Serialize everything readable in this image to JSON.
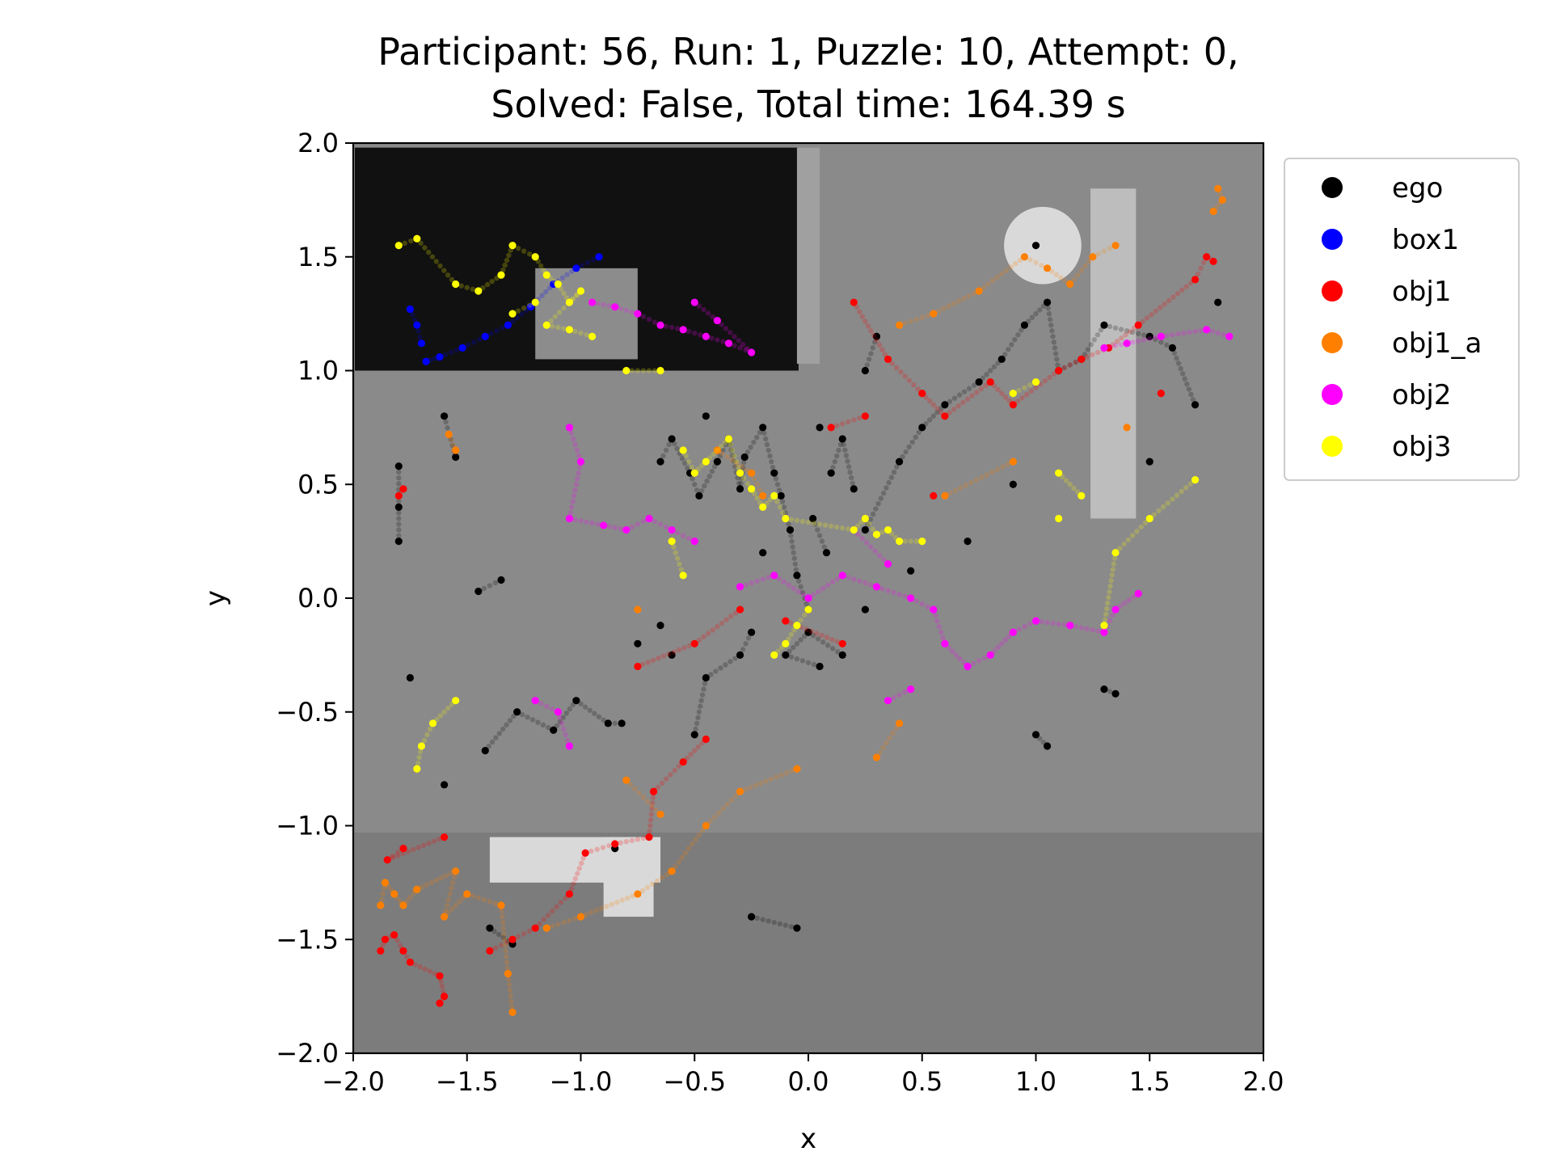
{
  "chart_data": {
    "type": "scatter",
    "title_line1": "Participant: 56, Run: 1, Puzzle: 10, Attempt: 0,",
    "title_line2": "Solved: False, Total time: 164.39 s",
    "xlabel": "x",
    "ylabel": "y",
    "xlim": [
      -2.0,
      2.0
    ],
    "ylim": [
      -2.0,
      2.0
    ],
    "xticks": [
      -2.0,
      -1.5,
      -1.0,
      -0.5,
      0.0,
      0.5,
      1.0,
      1.5,
      2.0
    ],
    "yticks": [
      -2.0,
      -1.5,
      -1.0,
      -0.5,
      0.0,
      0.5,
      1.0,
      1.5,
      2.0
    ],
    "xtick_labels": [
      "−2.0",
      "−1.5",
      "−1.0",
      "−0.5",
      "0.0",
      "0.5",
      "1.0",
      "1.5",
      "2.0"
    ],
    "ytick_labels": [
      "−2.0",
      "−1.5",
      "−1.0",
      "−0.5",
      "0.0",
      "0.5",
      "1.0",
      "1.5",
      "2.0"
    ],
    "legend_position": "outside-right-top",
    "background": {
      "floor_color": "#8a8a8a",
      "dark_region_color": "#111111",
      "lower_band_color": "#7c7c7c",
      "fixtures_color": "#d9d9d9"
    },
    "series": [
      {
        "name": "ego",
        "color": "#000000",
        "points": [
          [
            -1.8,
            0.58
          ],
          [
            -1.8,
            0.4
          ],
          [
            -1.8,
            0.25
          ],
          [
            -1.75,
            -0.35
          ],
          [
            -1.6,
            0.8
          ],
          [
            -1.55,
            0.62
          ],
          [
            -1.45,
            0.03
          ],
          [
            -1.35,
            0.08
          ],
          [
            -1.42,
            -0.67
          ],
          [
            -1.28,
            -0.5
          ],
          [
            -1.12,
            -0.58
          ],
          [
            -1.02,
            -0.45
          ],
          [
            -0.88,
            -0.55
          ],
          [
            -0.82,
            -0.55
          ],
          [
            -0.75,
            -0.2
          ],
          [
            -0.65,
            0.6
          ],
          [
            -0.6,
            0.7
          ],
          [
            -0.52,
            0.55
          ],
          [
            -0.48,
            0.45
          ],
          [
            -0.4,
            0.6
          ],
          [
            -0.35,
            0.7
          ],
          [
            -0.3,
            0.48
          ],
          [
            -0.28,
            0.62
          ],
          [
            -0.2,
            0.75
          ],
          [
            -0.15,
            0.55
          ],
          [
            -0.12,
            0.45
          ],
          [
            -0.08,
            0.3
          ],
          [
            -0.05,
            0.1
          ],
          [
            0.0,
            -0.05
          ],
          [
            0.02,
            0.35
          ],
          [
            0.08,
            0.2
          ],
          [
            0.1,
            0.55
          ],
          [
            0.15,
            0.7
          ],
          [
            0.2,
            0.48
          ],
          [
            -0.25,
            -0.15
          ],
          [
            -0.3,
            -0.25
          ],
          [
            -0.45,
            -0.35
          ],
          [
            -0.5,
            -0.6
          ],
          [
            -0.6,
            -0.25
          ],
          [
            -0.2,
            0.2
          ],
          [
            0.25,
            0.3
          ],
          [
            0.4,
            0.6
          ],
          [
            0.5,
            0.75
          ],
          [
            0.6,
            0.85
          ],
          [
            0.75,
            0.95
          ],
          [
            0.85,
            1.05
          ],
          [
            0.95,
            1.2
          ],
          [
            1.05,
            1.3
          ],
          [
            1.1,
            1.0
          ],
          [
            1.2,
            1.05
          ],
          [
            1.3,
            1.2
          ],
          [
            1.5,
            1.15
          ],
          [
            1.6,
            1.1
          ],
          [
            1.7,
            0.85
          ],
          [
            1.8,
            1.3
          ],
          [
            1.05,
            -0.65
          ],
          [
            1.0,
            -0.6
          ],
          [
            1.3,
            -0.4
          ],
          [
            1.35,
            -0.42
          ],
          [
            1.5,
            0.6
          ],
          [
            -0.05,
            -1.45
          ],
          [
            -0.25,
            -1.4
          ],
          [
            -0.85,
            -1.1
          ],
          [
            -1.4,
            -1.45
          ],
          [
            -1.3,
            -1.52
          ],
          [
            -1.6,
            -0.82
          ],
          [
            0.05,
            0.75
          ],
          [
            0.25,
            -0.05
          ],
          [
            -0.45,
            0.8
          ],
          [
            0.45,
            0.12
          ],
          [
            0.05,
            -0.3
          ],
          [
            -0.1,
            -0.25
          ],
          [
            0.0,
            -0.15
          ],
          [
            0.15,
            -0.25
          ],
          [
            -0.65,
            -0.12
          ],
          [
            0.7,
            0.25
          ],
          [
            0.3,
            1.15
          ],
          [
            0.25,
            1.0
          ],
          [
            1.0,
            1.55
          ],
          [
            0.9,
            0.5
          ]
        ]
      },
      {
        "name": "box1",
        "color": "#0000ff",
        "points": [
          [
            -1.68,
            1.04
          ],
          [
            -1.62,
            1.06
          ],
          [
            -1.52,
            1.1
          ],
          [
            -1.42,
            1.15
          ],
          [
            -1.32,
            1.2
          ],
          [
            -1.22,
            1.28
          ],
          [
            -1.12,
            1.38
          ],
          [
            -1.02,
            1.45
          ],
          [
            -0.92,
            1.5
          ],
          [
            -1.7,
            1.12
          ],
          [
            -1.72,
            1.2
          ],
          [
            -1.75,
            1.27
          ]
        ]
      },
      {
        "name": "obj1",
        "color": "#ff0000",
        "points": [
          [
            -1.88,
            -1.55
          ],
          [
            -1.86,
            -1.5
          ],
          [
            -1.82,
            -1.48
          ],
          [
            -1.78,
            -1.55
          ],
          [
            -1.75,
            -1.6
          ],
          [
            -1.62,
            -1.66
          ],
          [
            -1.6,
            -1.75
          ],
          [
            -1.62,
            -1.78
          ],
          [
            -1.6,
            -1.05
          ],
          [
            -1.85,
            -1.15
          ],
          [
            -1.78,
            -1.1
          ],
          [
            -1.4,
            -1.55
          ],
          [
            -1.3,
            -1.5
          ],
          [
            -1.2,
            -1.45
          ],
          [
            -1.05,
            -1.3
          ],
          [
            -0.98,
            -1.12
          ],
          [
            -0.85,
            -1.08
          ],
          [
            -0.7,
            -1.05
          ],
          [
            -0.68,
            -0.85
          ],
          [
            -0.55,
            -0.72
          ],
          [
            -0.45,
            -0.62
          ],
          [
            -0.75,
            -0.3
          ],
          [
            -0.5,
            -0.2
          ],
          [
            -0.3,
            -0.05
          ],
          [
            -1.78,
            0.48
          ],
          [
            -1.8,
            0.45
          ],
          [
            0.2,
            1.3
          ],
          [
            0.35,
            1.05
          ],
          [
            0.5,
            0.9
          ],
          [
            0.6,
            0.8
          ],
          [
            0.8,
            0.95
          ],
          [
            0.9,
            0.85
          ],
          [
            1.1,
            1.0
          ],
          [
            1.2,
            1.05
          ],
          [
            1.32,
            1.1
          ],
          [
            1.45,
            1.2
          ],
          [
            1.7,
            1.4
          ],
          [
            1.75,
            1.5
          ],
          [
            1.78,
            1.48
          ],
          [
            0.1,
            0.75
          ],
          [
            0.25,
            0.8
          ],
          [
            0.55,
            0.45
          ],
          [
            0.15,
            -0.2
          ],
          [
            -0.1,
            -0.1
          ],
          [
            1.55,
            0.9
          ]
        ]
      },
      {
        "name": "obj1_a",
        "color": "#ff8000",
        "points": [
          [
            -1.88,
            -1.35
          ],
          [
            -1.86,
            -1.25
          ],
          [
            -1.82,
            -1.3
          ],
          [
            -1.78,
            -1.35
          ],
          [
            -1.72,
            -1.28
          ],
          [
            -1.55,
            -1.2
          ],
          [
            -1.6,
            -1.4
          ],
          [
            -1.5,
            -1.3
          ],
          [
            -1.35,
            -1.35
          ],
          [
            -1.32,
            -1.65
          ],
          [
            -1.3,
            -1.82
          ],
          [
            -1.15,
            -1.45
          ],
          [
            -1.0,
            -1.4
          ],
          [
            -0.75,
            -1.3
          ],
          [
            -0.6,
            -1.2
          ],
          [
            -0.45,
            -1.0
          ],
          [
            -0.3,
            -0.85
          ],
          [
            -0.05,
            -0.75
          ],
          [
            0.3,
            -0.7
          ],
          [
            0.4,
            -0.55
          ],
          [
            -1.58,
            0.72
          ],
          [
            -1.55,
            0.65
          ],
          [
            -0.4,
            0.65
          ],
          [
            -0.25,
            0.55
          ],
          [
            -0.2,
            0.45
          ],
          [
            0.4,
            1.2
          ],
          [
            0.55,
            1.25
          ],
          [
            0.75,
            1.35
          ],
          [
            0.95,
            1.5
          ],
          [
            1.05,
            1.45
          ],
          [
            1.15,
            1.38
          ],
          [
            1.25,
            1.5
          ],
          [
            1.35,
            1.55
          ],
          [
            1.8,
            1.8
          ],
          [
            1.82,
            1.75
          ],
          [
            1.78,
            1.7
          ],
          [
            1.4,
            0.75
          ],
          [
            0.6,
            0.45
          ],
          [
            0.9,
            0.6
          ],
          [
            -0.75,
            -0.05
          ],
          [
            -0.8,
            -0.8
          ],
          [
            -0.65,
            -0.95
          ]
        ]
      },
      {
        "name": "obj2",
        "color": "#ff00ff",
        "points": [
          [
            -0.95,
            1.3
          ],
          [
            -0.85,
            1.28
          ],
          [
            -0.75,
            1.25
          ],
          [
            -0.65,
            1.2
          ],
          [
            -0.55,
            1.18
          ],
          [
            -0.45,
            1.15
          ],
          [
            -0.35,
            1.12
          ],
          [
            -0.25,
            1.08
          ],
          [
            -0.4,
            1.22
          ],
          [
            -0.5,
            1.3
          ],
          [
            -1.05,
            0.75
          ],
          [
            -1.0,
            0.6
          ],
          [
            -1.05,
            0.35
          ],
          [
            -0.9,
            0.32
          ],
          [
            -0.8,
            0.3
          ],
          [
            -0.7,
            0.35
          ],
          [
            -0.6,
            0.3
          ],
          [
            -0.5,
            0.25
          ],
          [
            -1.2,
            -0.45
          ],
          [
            -1.1,
            -0.5
          ],
          [
            -1.05,
            -0.65
          ],
          [
            -0.3,
            0.05
          ],
          [
            -0.15,
            0.1
          ],
          [
            0.0,
            0.0
          ],
          [
            0.15,
            0.1
          ],
          [
            0.3,
            0.05
          ],
          [
            0.45,
            0.0
          ],
          [
            0.55,
            -0.05
          ],
          [
            0.6,
            -0.2
          ],
          [
            0.7,
            -0.3
          ],
          [
            0.8,
            -0.25
          ],
          [
            0.9,
            -0.15
          ],
          [
            1.0,
            -0.1
          ],
          [
            1.15,
            -0.12
          ],
          [
            1.3,
            -0.15
          ],
          [
            1.35,
            -0.05
          ],
          [
            1.45,
            0.02
          ],
          [
            0.45,
            -0.4
          ],
          [
            0.35,
            -0.45
          ],
          [
            1.3,
            1.1
          ],
          [
            1.4,
            1.12
          ],
          [
            1.55,
            1.15
          ],
          [
            1.75,
            1.18
          ],
          [
            1.85,
            1.15
          ],
          [
            0.2,
            0.3
          ],
          [
            0.35,
            0.15
          ]
        ]
      },
      {
        "name": "obj3",
        "color": "#ffff00",
        "points": [
          [
            -1.8,
            1.55
          ],
          [
            -1.72,
            1.58
          ],
          [
            -1.55,
            1.38
          ],
          [
            -1.45,
            1.35
          ],
          [
            -1.35,
            1.42
          ],
          [
            -1.3,
            1.55
          ],
          [
            -1.2,
            1.5
          ],
          [
            -1.15,
            1.42
          ],
          [
            -1.1,
            1.38
          ],
          [
            -1.05,
            1.3
          ],
          [
            -1.0,
            1.35
          ],
          [
            -1.15,
            1.2
          ],
          [
            -1.05,
            1.18
          ],
          [
            -0.95,
            1.15
          ],
          [
            -1.3,
            1.25
          ],
          [
            -1.2,
            1.3
          ],
          [
            -0.8,
            1.0
          ],
          [
            -0.65,
            1.0
          ],
          [
            -0.55,
            0.65
          ],
          [
            -0.5,
            0.55
          ],
          [
            -0.45,
            0.6
          ],
          [
            -0.35,
            0.7
          ],
          [
            -0.3,
            0.55
          ],
          [
            -0.25,
            0.48
          ],
          [
            -0.2,
            0.4
          ],
          [
            -0.15,
            0.45
          ],
          [
            -0.1,
            0.35
          ],
          [
            0.2,
            0.3
          ],
          [
            0.25,
            0.35
          ],
          [
            0.3,
            0.28
          ],
          [
            0.35,
            0.3
          ],
          [
            0.4,
            0.25
          ],
          [
            0.5,
            0.25
          ],
          [
            0.9,
            0.9
          ],
          [
            1.0,
            0.95
          ],
          [
            1.1,
            0.55
          ],
          [
            1.2,
            0.45
          ],
          [
            1.3,
            -0.12
          ],
          [
            1.35,
            0.2
          ],
          [
            1.5,
            0.35
          ],
          [
            1.7,
            0.52
          ],
          [
            1.1,
            0.35
          ],
          [
            -1.55,
            -0.45
          ],
          [
            -1.65,
            -0.55
          ],
          [
            -1.7,
            -0.65
          ],
          [
            -1.72,
            -0.75
          ],
          [
            0.0,
            -0.05
          ],
          [
            -0.05,
            -0.12
          ],
          [
            -0.1,
            -0.2
          ],
          [
            -0.15,
            -0.25
          ],
          [
            -0.55,
            0.1
          ],
          [
            -0.6,
            0.25
          ]
        ]
      }
    ]
  }
}
